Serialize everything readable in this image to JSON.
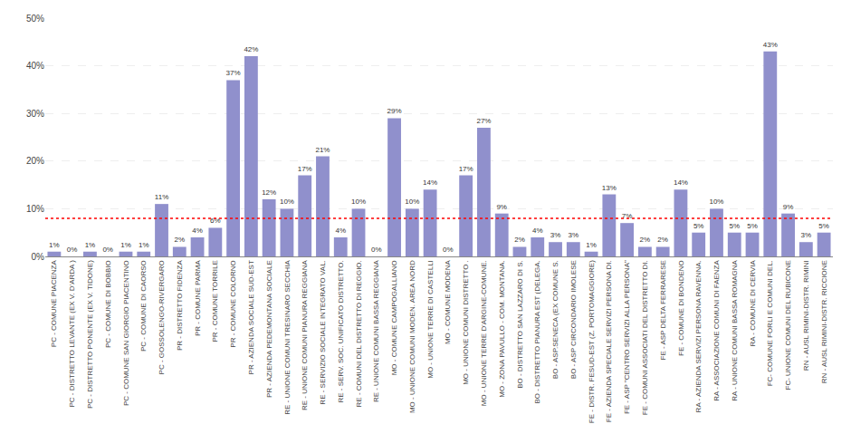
{
  "chart_data": {
    "type": "bar",
    "categories": [
      "PC - COMUNE PIACENZA",
      "PC - DISTRETTO LEVANTE (EX V. D'ARDA )",
      "PC - DISTRETTO PONENTE (EX V. TIDONE)",
      "PC - COMUNE DI BOBBIO",
      "PC - COMUNE SAN GIORGIO PIACENTINO",
      "PC - COMUNE DI CAORSO",
      "PC - GOSSOLENGO-RIVERGARO",
      "PR - DISTRETTO FIDENZA",
      "PR - COMUNE PARMA",
      "PR - COMUNE TORRILE",
      "PR - COMUNE COLORNO",
      "PR - AZIENDA SOCIALE SUD-EST",
      "PR - AZIENDA PEDEMONTANA SOCIALE",
      "RE - UNIONE COMUNI TRESINARO SECCHIA",
      "RE - UNIONE COMUNI PIANURA REGGIANA",
      "RE - SERVIZIO SOCIALE INTEGRATO VAL.",
      "RE - SERV. SOC. UNIFICATO DISTRETTO.",
      "RE - COMUNI DEL DISTRETTO DI REGGIO.",
      "RE - UNIONE COMUNI BASSA REGGIANA",
      "MO - COMUNE CAMPOGALLIANO",
      "MO - UNIONE COMUNI MODEN. AREA NORD",
      "MO - UNIONE TERRE DI CASTELLI",
      "MO - COMUNE MODENA",
      "MO - UNIONE COMUNI DISTRETTO .",
      "MO - UNIONE TERRE D'ARGINE-COMUNE.",
      "MO - ZONA PAVULLO - COM. MONTANA.",
      "BO - DISTRETTO SAN LAZZARO DI S.",
      "BO - DISTRETTO PIANURA EST (DELEGA.",
      "BO - ASP.SENECA (EX COMUNE S.",
      "BO - ASP CIRCONDARIO IMOLESE",
      "FE - DISTR. FESUD-EST (Z. PORTOMAGGIORE)",
      "FE - AZIENDA SPECIALE SERVIZI PERSONA DI.",
      "FE - ASP \"CENTRO SERVIZI ALLA PERSONA\"",
      "FE - COMUNI ASSOCIATI DEL DISTRETTO DI.",
      "FE - ASP DELTA FERRARESE",
      "FE - COMUNE DI BONDENO",
      "RA - AZIENDA SERVIZI PERSONA RAVENNA.",
      "RA - ASSOCIAZIONE COMUNI DI FAENZA",
      "RA - UNIONE COMUNI BASSA ROMAGNA",
      "RA - COMUNE DI CERVIA",
      "FC- COMUNE FORLI E COMUNI DEL.",
      "FC- UNIONE COMUNI DEL RUBICONE",
      "RN - AUSL RIMINI-DISTR. RIMINI",
      "RN - AUSL RIMINI-DISTR. RICCIONE"
    ],
    "values": [
      1,
      0,
      1,
      0,
      1,
      1,
      11,
      2,
      4,
      6,
      37,
      42,
      12,
      10,
      17,
      21,
      4,
      10,
      0,
      29,
      10,
      14,
      0,
      17,
      27,
      9,
      2,
      4,
      3,
      3,
      1,
      13,
      7,
      2,
      2,
      14,
      5,
      10,
      5,
      5,
      43,
      9,
      3,
      5
    ],
    "value_labels": [
      "1%",
      "0%",
      "1%",
      "0%",
      "1%",
      "1%",
      "11%",
      "2%",
      "4%",
      "6%",
      "37%",
      "42%",
      "12%",
      "10%",
      "17%",
      "21%",
      "4%",
      "10%",
      "0%",
      "29%",
      "10%",
      "14%",
      "0%",
      "17%",
      "27%",
      "9%",
      "2%",
      "4%",
      "3%",
      "3%",
      "1%",
      "13%",
      "7%",
      "2%",
      "2%",
      "14%",
      "5%",
      "10%",
      "5%",
      "5%",
      "43%",
      "9%",
      "3%",
      "5%"
    ],
    "data_labels": true,
    "color": "#9090cc",
    "reference_line": {
      "value": 8,
      "color": "#ff0000"
    },
    "ylim": [
      0,
      50
    ],
    "yticks": [
      {
        "value": 0,
        "label": "0%"
      },
      {
        "value": 10,
        "label": "10%"
      },
      {
        "value": 20,
        "label": "20%"
      },
      {
        "value": 30,
        "label": "30%"
      },
      {
        "value": 40,
        "label": "40%"
      },
      {
        "value": 50,
        "label": "50%"
      }
    ],
    "grid": true
  }
}
